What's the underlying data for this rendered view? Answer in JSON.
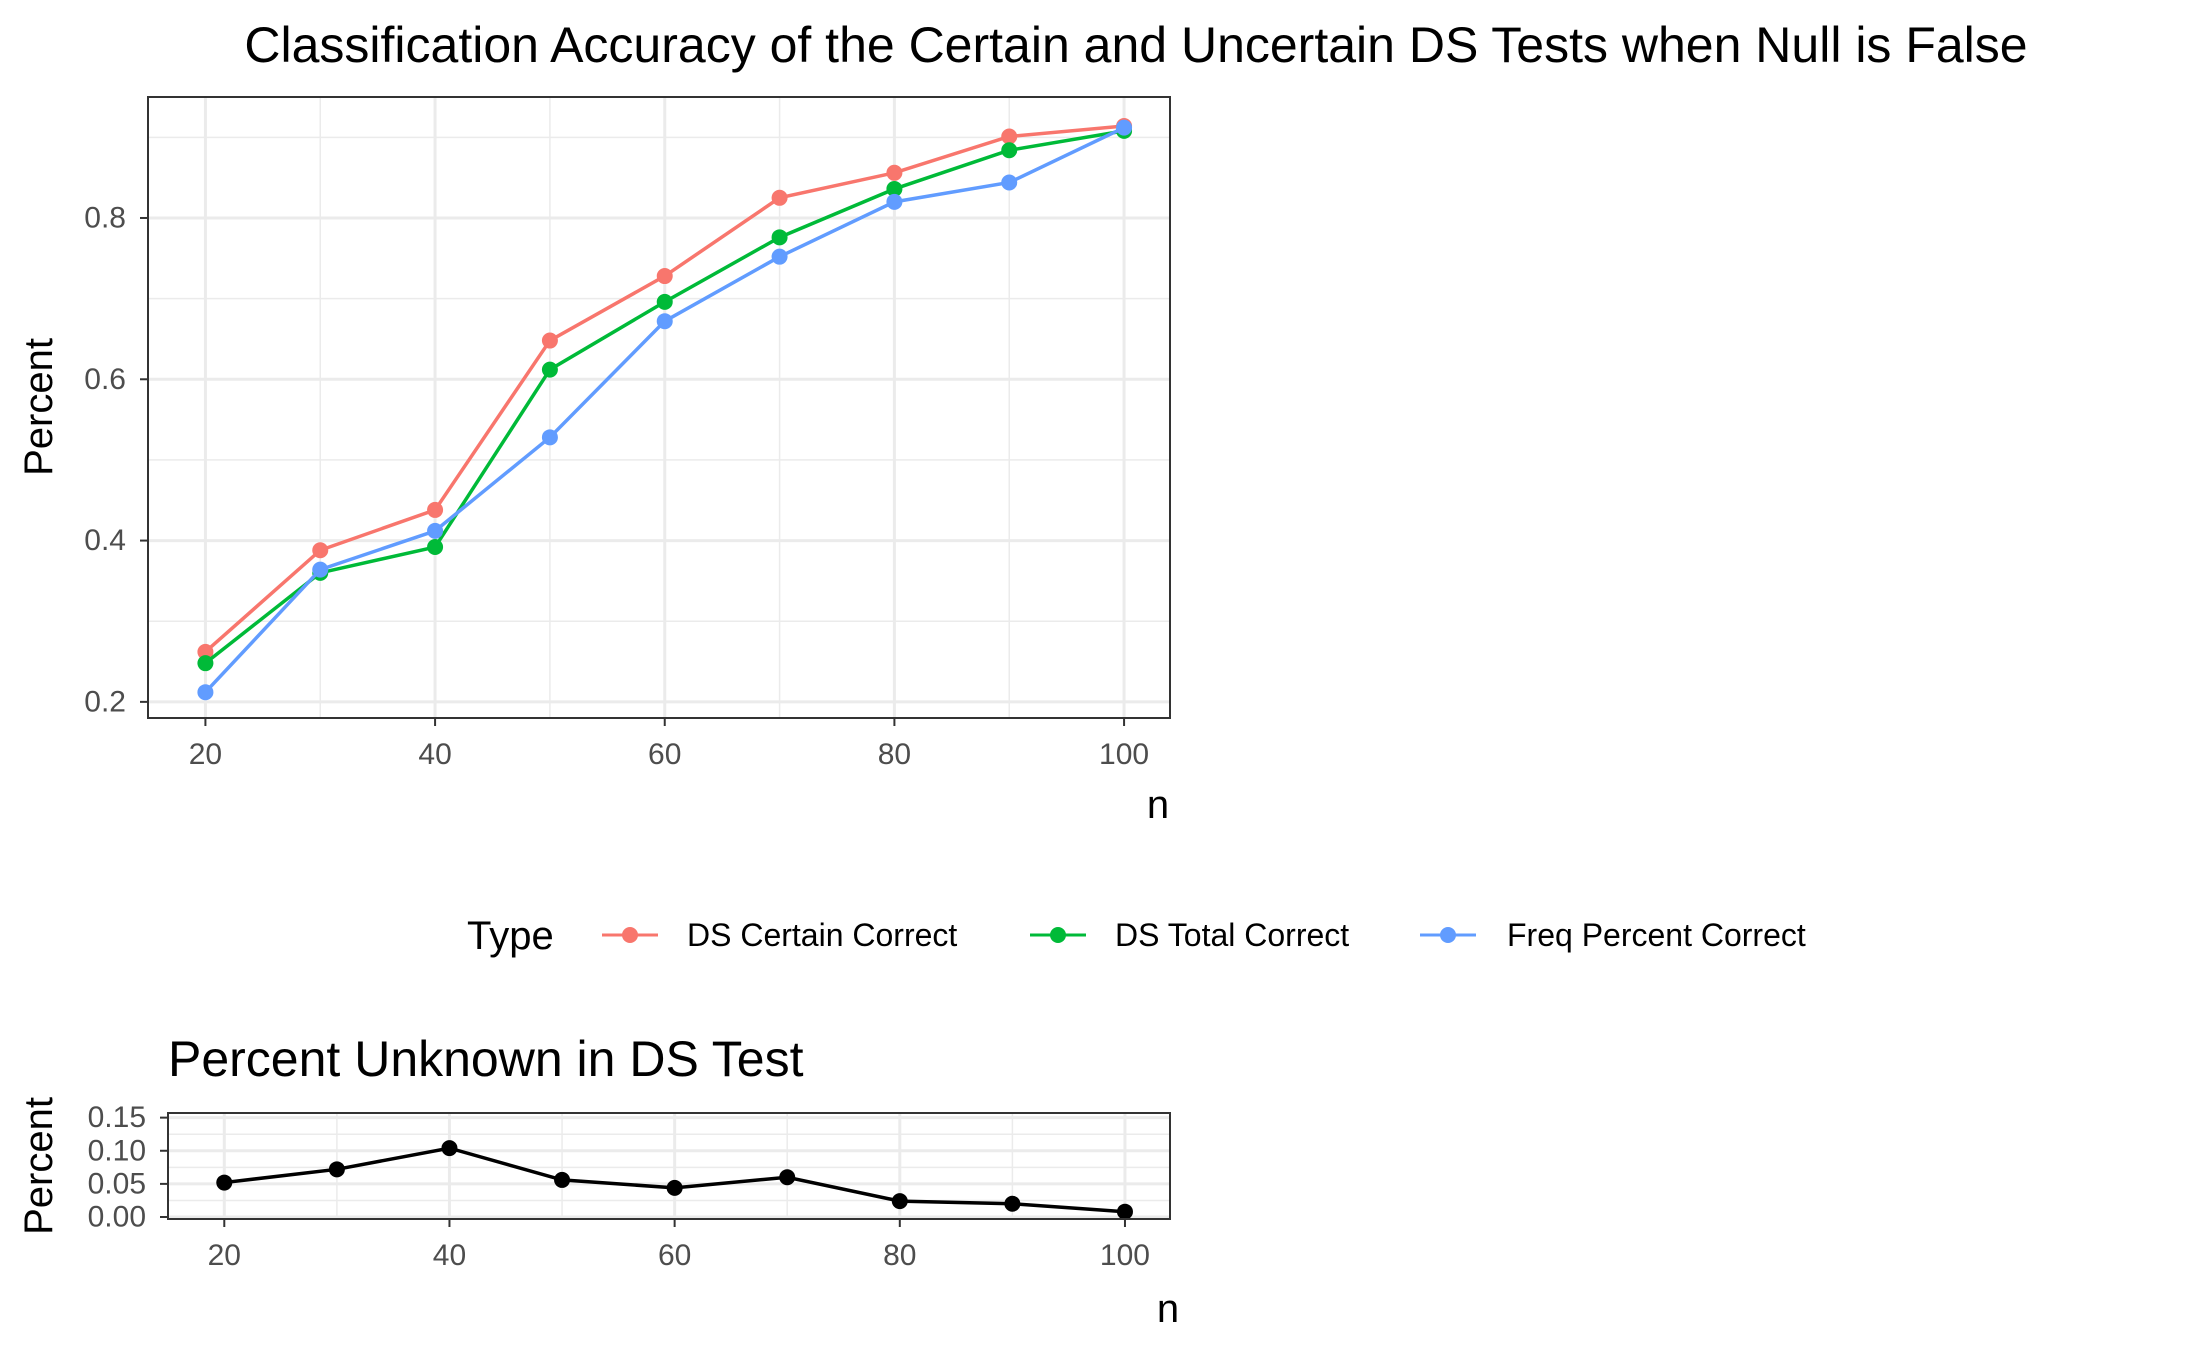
{
  "chart_data": [
    {
      "type": "line",
      "title": "Classification Accuracy of the Certain and Uncertain DS Tests when Null is False",
      "xlabel": "n",
      "ylabel": "Percent",
      "xlim": [
        15,
        104
      ],
      "ylim": [
        0.18,
        0.95
      ],
      "x_ticks": [
        "20",
        "40",
        "60",
        "80",
        "100"
      ],
      "y_ticks": [
        "0.2",
        "0.4",
        "0.6",
        "0.8"
      ],
      "grid": true,
      "legend": {
        "title": "Type",
        "position": "bottom",
        "entries": [
          "DS Certain Correct",
          "DS Total Correct",
          "Freq Percent Correct"
        ]
      },
      "x": [
        20,
        30,
        40,
        50,
        60,
        70,
        80,
        90,
        100
      ],
      "series": [
        {
          "name": "DS Certain Correct",
          "color": "#F8766D",
          "values": [
            0.262,
            0.388,
            0.438,
            0.648,
            0.728,
            0.825,
            0.856,
            0.901,
            0.914
          ]
        },
        {
          "name": "DS Total Correct",
          "color": "#00BA38",
          "values": [
            0.248,
            0.36,
            0.392,
            0.612,
            0.696,
            0.776,
            0.836,
            0.884,
            0.908
          ]
        },
        {
          "name": "Freq Percent Correct",
          "color": "#619CFF",
          "values": [
            0.212,
            0.364,
            0.412,
            0.528,
            0.672,
            0.752,
            0.82,
            0.844,
            0.912
          ]
        }
      ]
    },
    {
      "type": "line",
      "title": "Percent Unknown in DS Test",
      "xlabel": "n",
      "ylabel": "Percent",
      "xlim": [
        15,
        104
      ],
      "ylim": [
        -0.003,
        0.157
      ],
      "x_ticks": [
        "20",
        "40",
        "60",
        "80",
        "100"
      ],
      "y_ticks": [
        "0.00",
        "0.05",
        "0.10",
        "0.15"
      ],
      "grid": true,
      "x": [
        20,
        30,
        40,
        50,
        60,
        70,
        80,
        90,
        100
      ],
      "series": [
        {
          "name": "Percent Unknown",
          "color": "#000000",
          "values": [
            0.052,
            0.072,
            0.104,
            0.056,
            0.044,
            0.06,
            0.024,
            0.02,
            0.008
          ]
        }
      ]
    }
  ]
}
